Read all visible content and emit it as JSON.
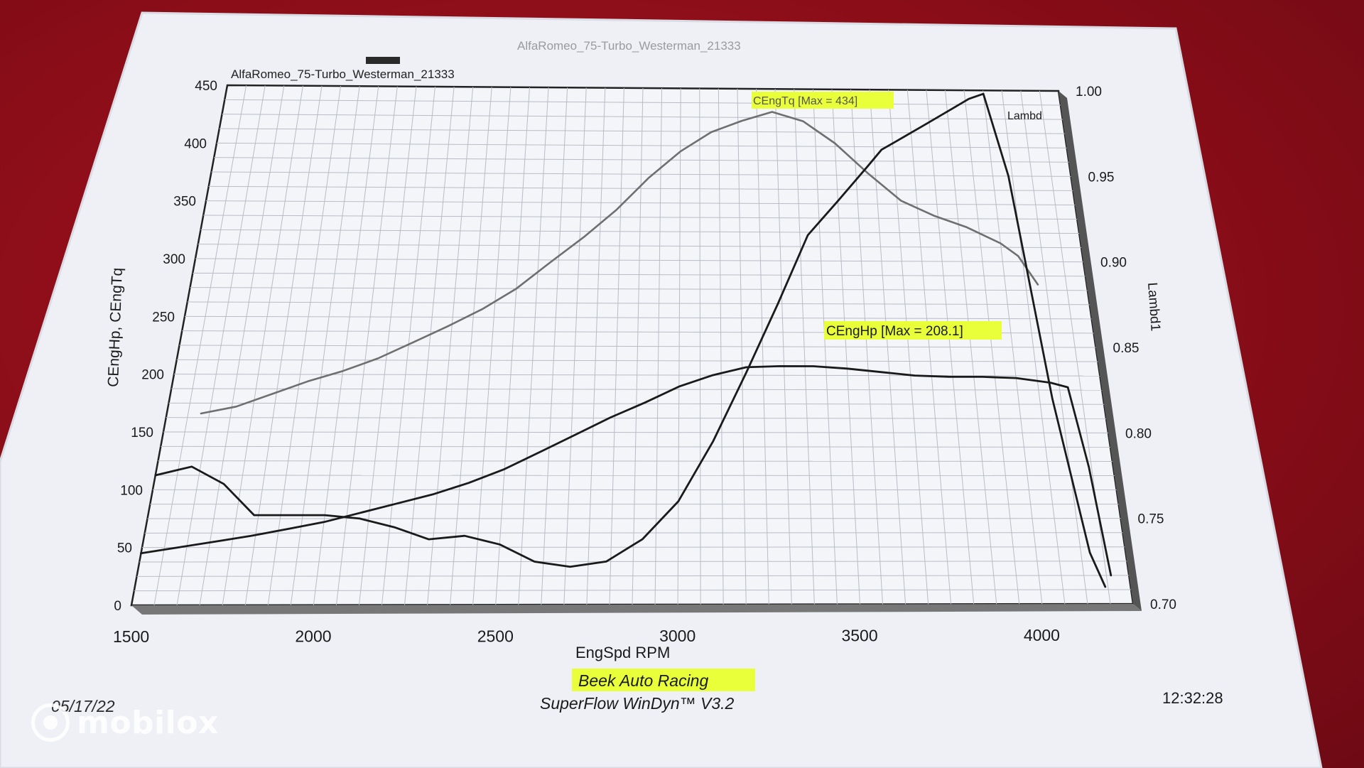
{
  "chart_data": {
    "type": "line",
    "title": "AlfaRomeo_75-Turbo_Westerman_21333",
    "xlabel": "EngSpd RPM",
    "ylabel": "CEngHp, CEngTq",
    "y2label": "Lambd1",
    "xlim": [
      1500,
      4250
    ],
    "ylim": [
      0,
      450
    ],
    "y2lim": [
      0.7,
      1.0
    ],
    "x_ticks": [
      "1500",
      "2000",
      "2500",
      "3000",
      "3500",
      "4000"
    ],
    "y_ticks": [
      "0",
      "50",
      "100",
      "150",
      "200",
      "250",
      "300",
      "350",
      "400",
      "450"
    ],
    "y2_ticks": [
      "0.70",
      "0.75",
      "0.80",
      "0.85",
      "0.90",
      "0.95",
      "1.00"
    ],
    "grid": true,
    "series": [
      {
        "name": "CEngTq",
        "axis": "left",
        "color": "#6f6f6f",
        "label": "CEngTq [Max = 434]",
        "x": [
          1600,
          1700,
          1800,
          1900,
          2000,
          2100,
          2200,
          2300,
          2400,
          2500,
          2600,
          2700,
          2800,
          2900,
          3000,
          3100,
          3200,
          3300,
          3400,
          3500,
          3600,
          3700,
          3800,
          3900,
          4000,
          4050,
          4100
        ],
        "y": [
          166,
          172,
          183,
          194,
          203,
          214,
          228,
          242,
          257,
          275,
          298,
          320,
          344,
          372,
          395,
          412,
          422,
          430,
          422,
          403,
          377,
          353,
          340,
          330,
          316,
          305,
          280
        ]
      },
      {
        "name": "CEngHp",
        "axis": "left",
        "color": "#1a1a1a",
        "label": "CEngHp [Max = 208.1]",
        "x": [
          1500,
          1600,
          1700,
          1800,
          1900,
          2000,
          2100,
          2200,
          2300,
          2400,
          2500,
          2600,
          2700,
          2800,
          2900,
          3000,
          3100,
          3200,
          3300,
          3400,
          3500,
          3600,
          3700,
          3800,
          3900,
          4000,
          4100,
          4150,
          4180,
          4200
        ],
        "y": [
          45,
          50,
          55,
          60,
          66,
          72,
          80,
          88,
          96,
          106,
          118,
          133,
          148,
          163,
          176,
          190,
          200,
          207,
          208,
          208,
          206,
          203,
          200,
          199,
          199,
          198,
          194,
          190,
          120,
          25
        ]
      },
      {
        "name": "Lambd1",
        "axis": "right",
        "color": "#1a1a1a",
        "x": [
          1500,
          1600,
          1700,
          1800,
          1900,
          2000,
          2100,
          2200,
          2300,
          2400,
          2500,
          2600,
          2700,
          2800,
          2900,
          3000,
          3100,
          3200,
          3300,
          3400,
          3500,
          3600,
          3650,
          3700,
          3800,
          3900,
          3950,
          4000,
          4050,
          4100,
          4150,
          4180
        ],
        "y": [
          0.775,
          0.78,
          0.77,
          0.752,
          0.752,
          0.752,
          0.75,
          0.745,
          0.738,
          0.74,
          0.735,
          0.725,
          0.722,
          0.725,
          0.738,
          0.76,
          0.795,
          0.835,
          0.875,
          0.915,
          0.935,
          0.955,
          0.965,
          0.97,
          0.98,
          0.99,
          0.995,
          0.998,
          0.95,
          0.82,
          0.73,
          0.71
        ]
      }
    ]
  },
  "header": {
    "faded_title": "AlfaRomeo_75-Turbo_Westerman_21333",
    "title": "AlfaRomeo_75-Turbo_Westerman_21333"
  },
  "labels": {
    "tq_max": "CEngTq [Max = 434]",
    "hp_max": "CEngHp [Max = 208.1]",
    "lambda_end": "Lambd",
    "x_axis": "EngSpd RPM",
    "y_axis": "CEngHp, CEngTq",
    "y2_axis": "Lambd1"
  },
  "footer": {
    "company": "Beek Auto Racing",
    "software": "SuperFlow WinDyn™ V3.2",
    "date": "05/17/22",
    "time": "12:32:28"
  },
  "watermark": {
    "brand": "mobilox"
  },
  "colors": {
    "highlight": "#e8ff3a",
    "paper": "#eef0f5",
    "torque_line": "#6f6f6f",
    "ink": "#1a1a1a"
  }
}
